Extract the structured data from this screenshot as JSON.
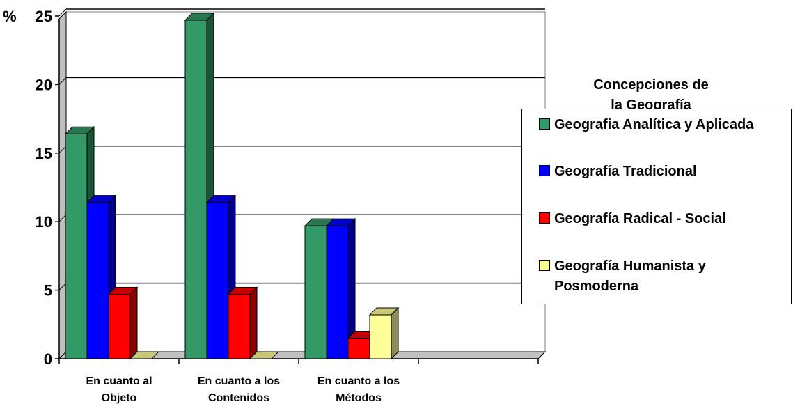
{
  "chart_data": {
    "type": "bar",
    "style": "3d-clustered-column",
    "y_unit_label": "%",
    "categories": [
      [
        "En cuanto al",
        "Objeto"
      ],
      [
        "En cuanto a los",
        "Contenidos"
      ],
      [
        "En cuanto a los",
        "Métodos"
      ],
      [
        "",
        ""
      ]
    ],
    "series": [
      {
        "name": "Geografia Analítica y Aplicada",
        "color": "#339966",
        "values": [
          16.4,
          24.7,
          9.7,
          null
        ]
      },
      {
        "name": "Geografía Tradicional",
        "color": "#0000ff",
        "values": [
          11.4,
          11.4,
          9.7,
          null
        ]
      },
      {
        "name": "Geografía Radical - Social",
        "color": "#ff0000",
        "values": [
          4.7,
          4.7,
          1.5,
          null
        ]
      },
      {
        "name": "Geografía Humanista y Posmoderna",
        "color": "#ffff99",
        "values": [
          0,
          0,
          3.2,
          null
        ]
      }
    ],
    "ylim": [
      0,
      25
    ],
    "yticks": [
      "0",
      "5",
      "10",
      "15",
      "20",
      "25"
    ],
    "grid": true,
    "legend": {
      "title": "Concepciones de\nla Geografía",
      "position": "right"
    }
  }
}
